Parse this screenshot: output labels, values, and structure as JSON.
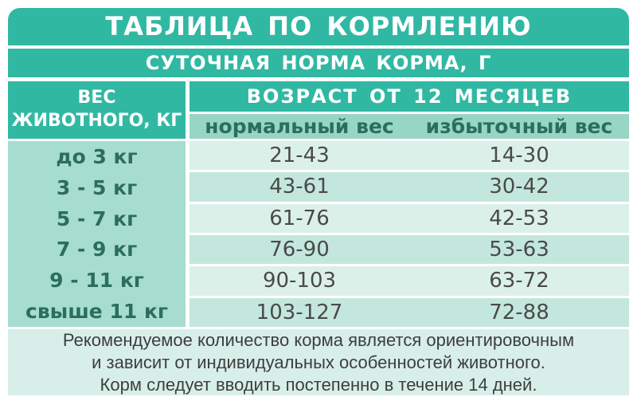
{
  "title": "ТАБЛИЦА ПО КОРМЛЕНИЮ",
  "subtitle": "СУТОЧНАЯ НОРМА КОРМА, Г",
  "chart_data": {
    "type": "table",
    "title": "ТАБЛИЦА ПО КОРМЛЕНИЮ",
    "subtitle": "СУТОЧНАЯ НОРМА КОРМА, Г",
    "row_header_line1": "ВЕС",
    "row_header_line2": "ЖИВОТНОГО, КГ",
    "column_group_header": "ВОЗРАСТ ОТ 12 МЕСЯЦЕВ",
    "columns": [
      "нормальный вес",
      "избыточный вес"
    ],
    "col_normal": "нормальный вес",
    "col_excess": "избыточный вес",
    "rows": [
      {
        "weight": "до 3 кг",
        "normal": "21-43",
        "excess": "14-30"
      },
      {
        "weight": "3 - 5 кг",
        "normal": "43-61",
        "excess": "30-42"
      },
      {
        "weight": "5 - 7 кг",
        "normal": "61-76",
        "excess": "42-53"
      },
      {
        "weight": "7 - 9 кг",
        "normal": "76-90",
        "excess": "53-63"
      },
      {
        "weight": "9 - 11 кг",
        "normal": "90-103",
        "excess": "63-72"
      },
      {
        "weight": "свыше 11 кг",
        "normal": "103-127",
        "excess": "72-88"
      }
    ]
  },
  "note": {
    "line1": "Рекомендуемое количество корма является ориентировочным",
    "line2": "и зависит от индивидуальных особенностей животного.",
    "line3": "Корм следует вводить постепенно в течение 14 дней."
  },
  "colors": {
    "teal": "#31b8a3",
    "subheader_mint": "#97d6c5",
    "label_column_mint": "#a7dcd1",
    "stripe_light": "#dcf0ea",
    "stripe_medium": "#c3e7dd",
    "note_background": "#d8eee9",
    "dark_green_text": "#2c6e5e",
    "value_text": "#4a4a4a",
    "note_text": "#3e3e3e"
  }
}
